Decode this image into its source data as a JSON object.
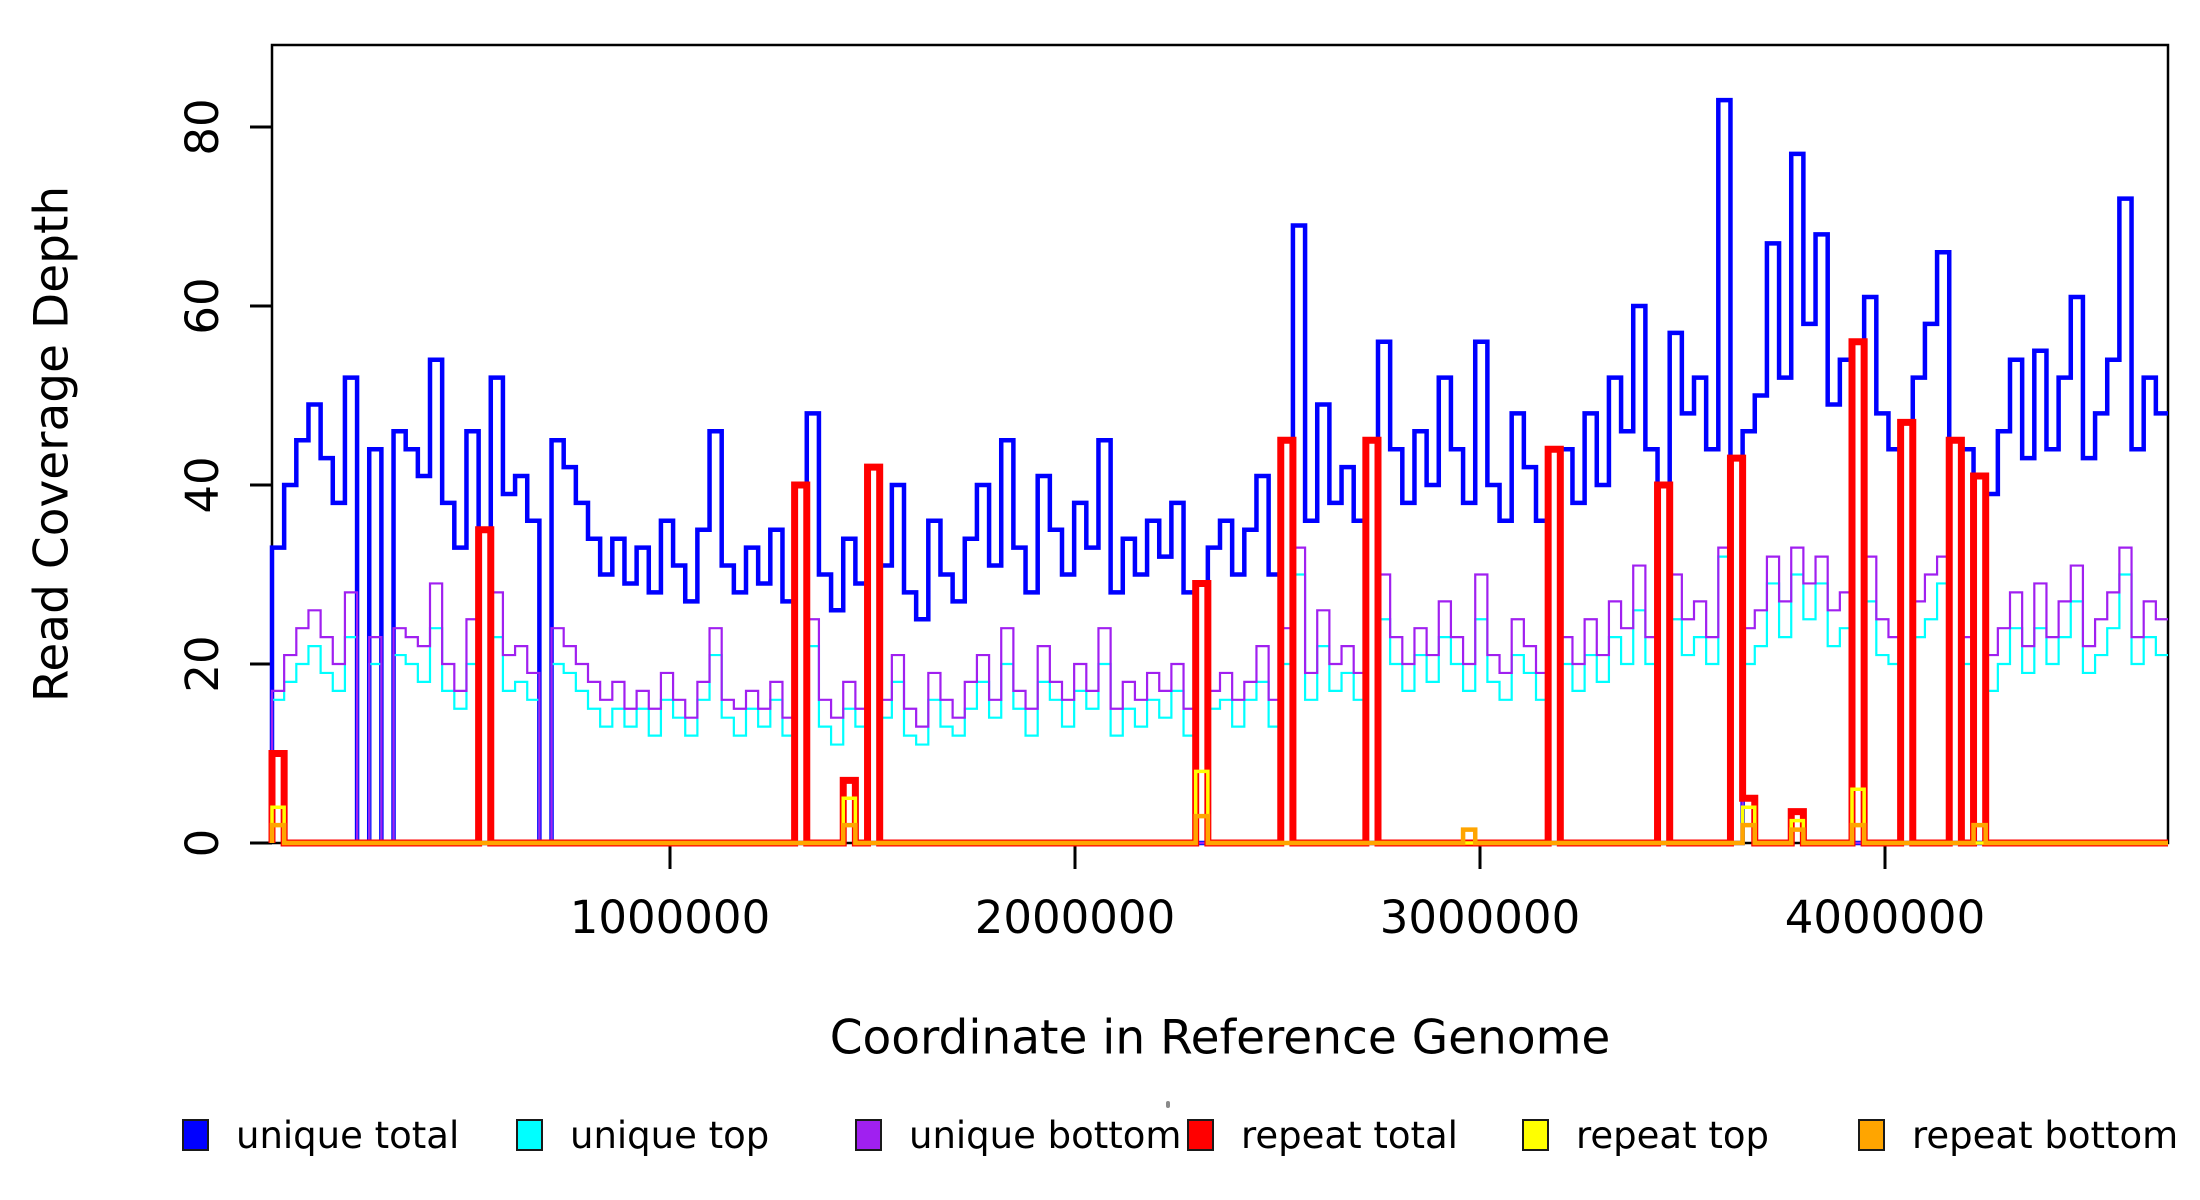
{
  "figure": {
    "background": "#ffffff",
    "y_axis_title": "Read Coverage Depth",
    "x_axis_title": "Coordinate in Reference Genome"
  },
  "legend": {
    "items": [
      {
        "label": "unique total",
        "color": "#0000FF"
      },
      {
        "label": "unique top",
        "color": "#00FFFF"
      },
      {
        "label": "unique bottom",
        "color": "#A020F0"
      },
      {
        "label": "repeat total",
        "color": "#FF0000"
      },
      {
        "label": "repeat top",
        "color": "#FFFF00"
      },
      {
        "label": "repeat bottom",
        "color": "#FFA500"
      }
    ]
  },
  "chart_data": {
    "type": "line",
    "style": "step",
    "title": "",
    "xlabel": "Coordinate in Reference Genome",
    "ylabel": "Read Coverage Depth",
    "grid": false,
    "legend_position": "below",
    "x_bin_start": 20000,
    "x_bin_size": 30000,
    "x_range": [
      0,
      4700000
    ],
    "ylim": [
      0,
      89
    ],
    "y_ticks": [
      0,
      20,
      40,
      60,
      80
    ],
    "x_ticks": [
      {
        "value": 1000000,
        "label": "1000000"
      },
      {
        "value": 2000000,
        "label": "2000000"
      },
      {
        "value": 3000000,
        "label": "3000000"
      },
      {
        "value": 4000000,
        "label": "4000000"
      }
    ],
    "series": [
      {
        "name": "unique total",
        "color": "#0000FF",
        "width": 4.5,
        "values": [
          33,
          40,
          45,
          49,
          43,
          38,
          52,
          0,
          44,
          0,
          46,
          44,
          41,
          54,
          38,
          33,
          46,
          0,
          52,
          39,
          41,
          36,
          0,
          45,
          42,
          38,
          34,
          30,
          34,
          29,
          33,
          28,
          36,
          31,
          27,
          35,
          46,
          31,
          28,
          33,
          29,
          35,
          27,
          0,
          48,
          30,
          26,
          34,
          29,
          0,
          31,
          40,
          28,
          25,
          36,
          30,
          27,
          34,
          40,
          31,
          45,
          33,
          28,
          41,
          35,
          30,
          38,
          33,
          45,
          28,
          34,
          30,
          36,
          32,
          38,
          28,
          0,
          33,
          36,
          30,
          35,
          41,
          30,
          45,
          69,
          36,
          49,
          38,
          42,
          36,
          0,
          56,
          44,
          38,
          46,
          40,
          52,
          44,
          38,
          56,
          40,
          36,
          48,
          42,
          36,
          0,
          44,
          38,
          48,
          40,
          52,
          46,
          60,
          44,
          0,
          57,
          48,
          52,
          44,
          83,
          0,
          46,
          50,
          67,
          52,
          77,
          58,
          68,
          49,
          54,
          0,
          61,
          48,
          44,
          0,
          52,
          58,
          66,
          0,
          44,
          0,
          39,
          46,
          54,
          43,
          55,
          44,
          52,
          61,
          43,
          48,
          54,
          72,
          44,
          52,
          48
        ]
      },
      {
        "name": "unique top",
        "color": "#00FFFF",
        "width": 2.2,
        "values": [
          16,
          18,
          20,
          22,
          19,
          17,
          23,
          0,
          20,
          0,
          21,
          20,
          18,
          24,
          17,
          15,
          20,
          0,
          23,
          17,
          18,
          16,
          0,
          20,
          19,
          17,
          15,
          13,
          15,
          13,
          15,
          12,
          16,
          14,
          12,
          16,
          21,
          14,
          12,
          15,
          13,
          16,
          12,
          0,
          22,
          13,
          11,
          15,
          13,
          0,
          14,
          18,
          12,
          11,
          16,
          13,
          12,
          15,
          18,
          14,
          20,
          15,
          12,
          18,
          16,
          13,
          17,
          15,
          20,
          12,
          15,
          13,
          16,
          14,
          17,
          12,
          0,
          15,
          16,
          13,
          16,
          18,
          13,
          20,
          30,
          16,
          22,
          17,
          19,
          16,
          0,
          25,
          20,
          17,
          21,
          18,
          23,
          20,
          17,
          25,
          18,
          16,
          21,
          19,
          16,
          0,
          20,
          17,
          21,
          18,
          23,
          20,
          26,
          20,
          0,
          25,
          21,
          23,
          20,
          32,
          0,
          20,
          22,
          29,
          23,
          30,
          25,
          29,
          22,
          24,
          0,
          27,
          21,
          20,
          0,
          23,
          25,
          29,
          0,
          20,
          0,
          17,
          20,
          24,
          19,
          24,
          20,
          23,
          27,
          19,
          21,
          24,
          30,
          20,
          23,
          21
        ]
      },
      {
        "name": "unique bottom",
        "color": "#A020F0",
        "width": 2.2,
        "values": [
          17,
          21,
          24,
          26,
          23,
          20,
          28,
          0,
          23,
          0,
          24,
          23,
          22,
          29,
          20,
          17,
          25,
          0,
          28,
          21,
          22,
          19,
          0,
          24,
          22,
          20,
          18,
          16,
          18,
          15,
          17,
          15,
          19,
          16,
          14,
          18,
          24,
          16,
          15,
          17,
          15,
          18,
          14,
          0,
          25,
          16,
          14,
          18,
          15,
          0,
          16,
          21,
          15,
          13,
          19,
          16,
          14,
          18,
          21,
          16,
          24,
          17,
          15,
          22,
          18,
          16,
          20,
          17,
          24,
          15,
          18,
          16,
          19,
          17,
          20,
          15,
          0,
          17,
          19,
          16,
          18,
          22,
          16,
          24,
          33,
          19,
          26,
          20,
          22,
          19,
          0,
          30,
          23,
          20,
          24,
          21,
          27,
          23,
          20,
          30,
          21,
          19,
          25,
          22,
          19,
          0,
          23,
          20,
          25,
          21,
          27,
          24,
          31,
          23,
          0,
          30,
          25,
          27,
          23,
          33,
          0,
          24,
          26,
          32,
          27,
          33,
          29,
          32,
          26,
          28,
          0,
          32,
          25,
          23,
          0,
          27,
          30,
          32,
          0,
          23,
          0,
          21,
          24,
          28,
          22,
          29,
          23,
          27,
          31,
          22,
          25,
          28,
          33,
          23,
          27,
          25
        ]
      },
      {
        "name": "repeat total",
        "color": "#FF0000",
        "width": 7,
        "spikes": {
          "0": 10,
          "17": 35,
          "43": 40,
          "47": 7,
          "49": 42,
          "76": 29,
          "83": 45,
          "90": 45,
          "105": 44,
          "114": 40,
          "120": 43,
          "121": 5,
          "125": 3.5,
          "130": 56,
          "134": 47,
          "138": 45,
          "140": 41
        }
      },
      {
        "name": "repeat top",
        "color": "#FFFF00",
        "width": 3.5,
        "spikes": {
          "0": 4,
          "47": 5,
          "76": 8,
          "121": 4,
          "125": 2.5,
          "130": 6
        }
      },
      {
        "name": "repeat bottom",
        "color": "#FFA500",
        "width": 4.5,
        "spikes": {
          "0": 2,
          "47": 2,
          "76": 3,
          "98": 1.5,
          "121": 2,
          "125": 1.5,
          "130": 2,
          "140": 2
        }
      }
    ]
  }
}
